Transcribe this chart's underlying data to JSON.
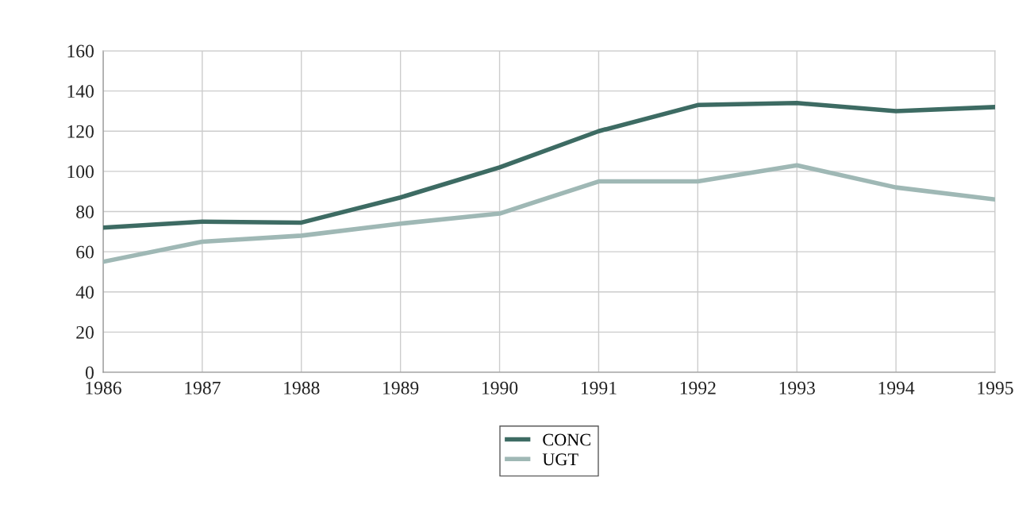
{
  "chart_data": {
    "type": "line",
    "x": [
      1986,
      1987,
      1988,
      1989,
      1990,
      1991,
      1992,
      1993,
      1994,
      1995
    ],
    "series": [
      {
        "name": "CONC",
        "color": "#3d6b63",
        "values": [
          72,
          75,
          74.5,
          87,
          102,
          120,
          133,
          134,
          130,
          132
        ]
      },
      {
        "name": "UGT",
        "color": "#9fb8b5",
        "values": [
          55,
          65,
          68,
          74,
          79,
          95,
          95,
          103,
          92,
          86
        ]
      }
    ],
    "xlim": [
      1986,
      1995
    ],
    "xticks": [
      1986,
      1987,
      1988,
      1989,
      1990,
      1991,
      1992,
      1993,
      1994,
      1995
    ],
    "ylim": [
      0,
      160
    ],
    "yticks": [
      0,
      20,
      40,
      60,
      80,
      100,
      120,
      140,
      160
    ],
    "grid": true,
    "legend": "bottom",
    "marker": "none",
    "line_style": "solid"
  }
}
